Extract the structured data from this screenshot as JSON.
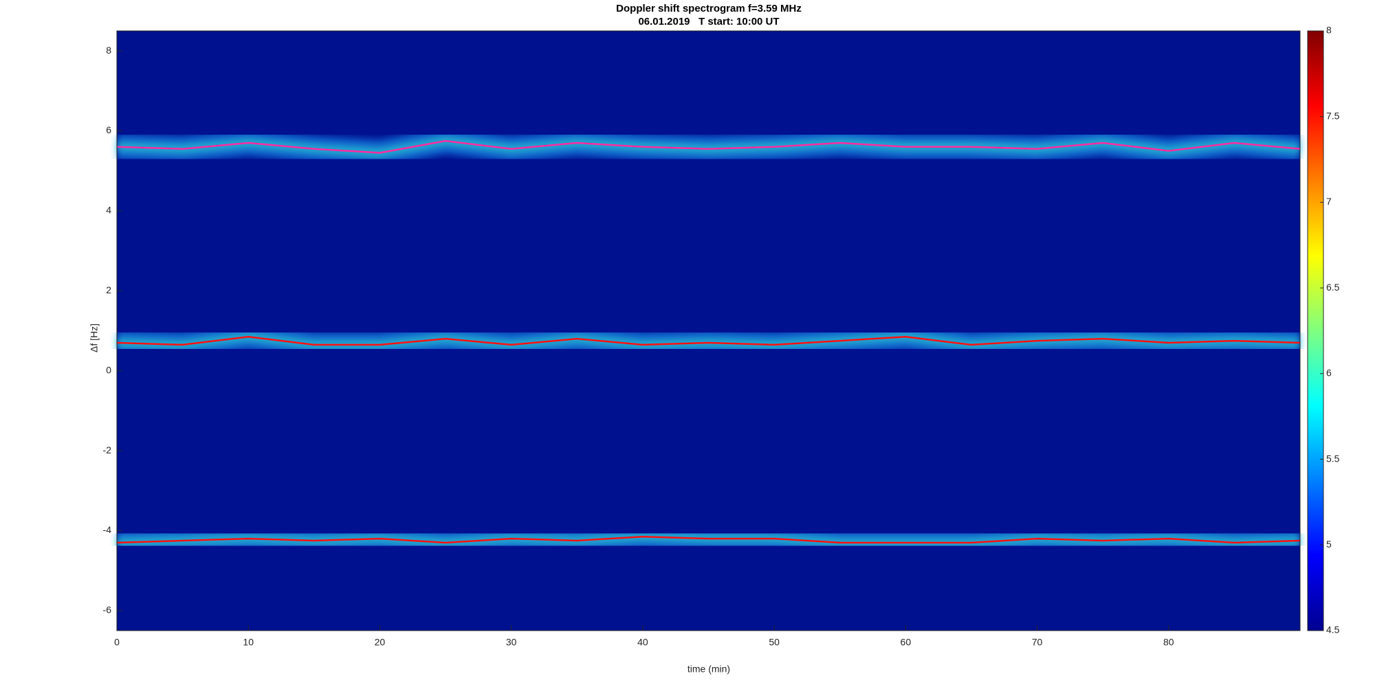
{
  "chart_data": {
    "type": "spectrogram",
    "title": "Doppler shift spectrogram f=3.59 MHz",
    "subtitle": "06.01.2019   T start: 10:00 UT",
    "x_label": "time (min)",
    "y_label": "Δf [Hz]",
    "x": [
      0,
      5,
      10,
      15,
      20,
      25,
      30,
      35,
      40,
      45,
      50,
      55,
      60,
      65,
      70,
      75,
      80,
      85,
      90
    ],
    "series": [
      {
        "color": "#ff2aa0",
        "values": [
          5.6,
          5.55,
          5.7,
          5.55,
          5.45,
          5.75,
          5.55,
          5.7,
          5.6,
          5.55,
          5.6,
          5.7,
          5.6,
          5.6,
          5.55,
          5.7,
          5.5,
          5.7,
          5.55
        ]
      },
      {
        "color": "#ff1010",
        "values": [
          0.7,
          0.65,
          0.85,
          0.65,
          0.65,
          0.8,
          0.65,
          0.8,
          0.65,
          0.7,
          0.65,
          0.75,
          0.85,
          0.65,
          0.75,
          0.8,
          0.7,
          0.75,
          0.7
        ]
      },
      {
        "color": "#ff1010",
        "values": [
          -4.3,
          -4.25,
          -4.2,
          -4.25,
          -4.2,
          -4.3,
          -4.2,
          -4.25,
          -4.15,
          -4.2,
          -4.2,
          -4.3,
          -4.3,
          -4.3,
          -4.2,
          -4.25,
          -4.2,
          -4.3,
          -4.25
        ]
      }
    ],
    "xlim": [
      0,
      90
    ],
    "xticks": [
      0,
      10,
      20,
      30,
      40,
      50,
      60,
      70,
      80
    ],
    "ylim": [
      -6.5,
      8.5
    ],
    "yticks": [
      -6,
      -4,
      -2,
      0,
      2,
      4,
      6,
      8
    ],
    "clim": [
      4.5,
      8
    ],
    "cticks": [
      4.5,
      5,
      5.5,
      6,
      6.5,
      7,
      7.5,
      8
    ],
    "background_color": "#00118f"
  }
}
